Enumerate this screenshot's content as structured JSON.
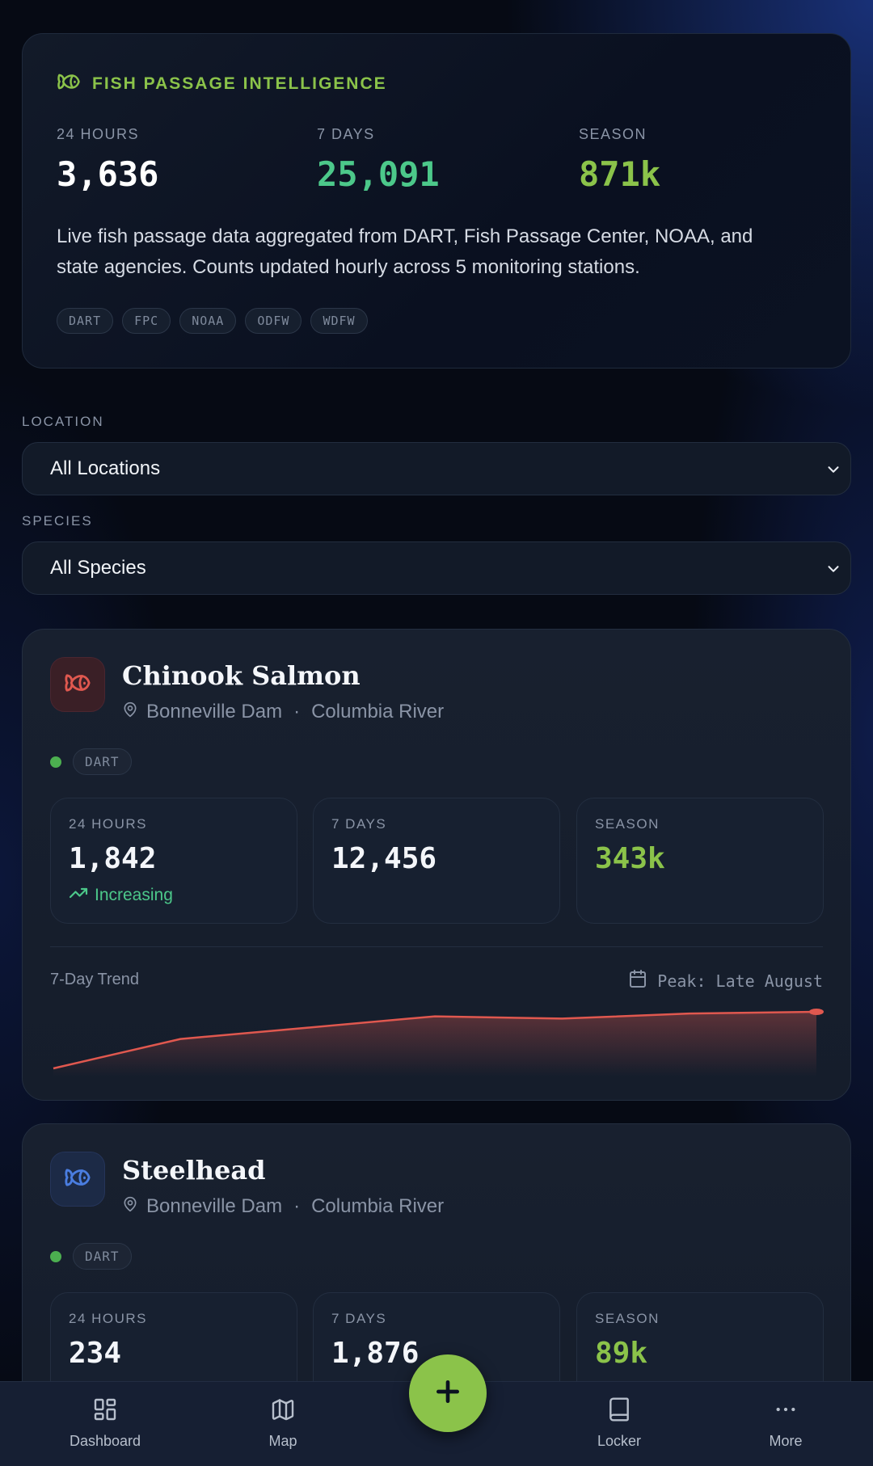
{
  "summary": {
    "title": "FISH PASSAGE INTELLIGENCE",
    "stats": [
      {
        "label": "24 HOURS",
        "value": "3,636",
        "color": "#ffffff"
      },
      {
        "label": "7 DAYS",
        "value": "25,091",
        "color": "#4cc88a"
      },
      {
        "label": "SEASON",
        "value": "871k",
        "color": "#8bc34a"
      }
    ],
    "description": "Live fish passage data aggregated from DART, Fish Passage Center, NOAA, and state agencies. Counts updated hourly across 5 monitoring stations.",
    "sources": [
      "DART",
      "FPC",
      "NOAA",
      "ODFW",
      "WDFW"
    ]
  },
  "filters": {
    "location_label": "LOCATION",
    "location_value": "All Locations",
    "species_label": "SPECIES",
    "species_value": "All Species"
  },
  "cards": [
    {
      "name": "Chinook Salmon",
      "icon": "fish-icon",
      "accent": "#e0584f",
      "dam": "Bonneville Dam",
      "separator": "·",
      "river": "Columbia River",
      "source": "DART",
      "tiles": [
        {
          "label": "24 HOURS",
          "value": "1,842",
          "trend": "Increasing"
        },
        {
          "label": "7 DAYS",
          "value": "12,456"
        },
        {
          "label": "SEASON",
          "value": "343k"
        }
      ],
      "trend_label": "7-Day Trend",
      "peak": "Peak: Late August",
      "sparkline": [
        0.0,
        0.52,
        0.72,
        0.92,
        0.88,
        0.97,
        1.0
      ]
    },
    {
      "name": "Steelhead",
      "icon": "fish-icon",
      "accent": "#4a7de0",
      "dam": "Bonneville Dam",
      "separator": "·",
      "river": "Columbia River",
      "source": "DART",
      "tiles": [
        {
          "label": "24 HOURS",
          "value": "234"
        },
        {
          "label": "7 DAYS",
          "value": "1,876"
        },
        {
          "label": "SEASON",
          "value": "89k"
        }
      ]
    }
  ],
  "nav": {
    "dashboard": "Dashboard",
    "map": "Map",
    "locker": "Locker",
    "more": "More"
  }
}
